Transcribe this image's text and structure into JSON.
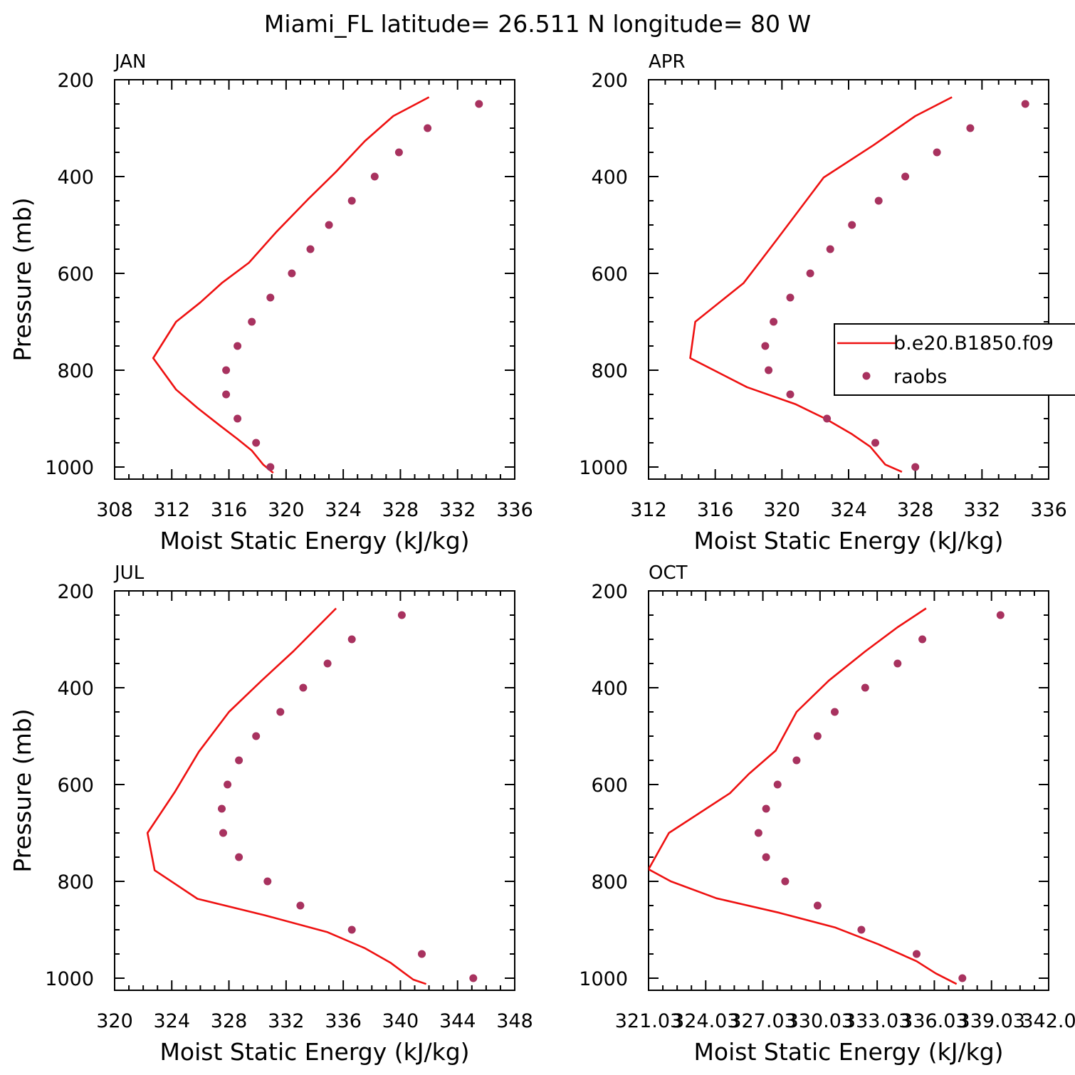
{
  "title": "Miami_FL  latitude= 26.511 N longitude= 80 W",
  "colors": {
    "model_line": "#ee1111",
    "obs_marker": "#a8325f",
    "axis": "#000000"
  },
  "legend": {
    "placement": "right-middle of APR panel",
    "entries": [
      {
        "label": "b.e20.B1850.f09",
        "style": "line"
      },
      {
        "label": "raobs",
        "style": "marker"
      }
    ]
  },
  "chart_data": [
    {
      "type": "line",
      "panel_label": "JAN",
      "xlabel": "Moist Static Energy (kJ/kg)",
      "ylabel": "Pressure (mb)",
      "xlim": [
        308,
        336
      ],
      "ylim": [
        1025,
        200
      ],
      "xticks": [
        "308",
        "312",
        "316",
        "320",
        "324",
        "328",
        "332",
        "336"
      ],
      "yticks": [
        "200",
        "400",
        "600",
        "800",
        "1000"
      ],
      "series": [
        {
          "name": "b.e20.B1850.f09",
          "style": "line",
          "x": [
            330,
            327.5,
            325.5,
            323.5,
            321.5,
            319.3,
            317.4,
            315.5,
            314,
            312.3,
            310.7,
            312.3,
            313.8,
            315.4,
            316.6,
            317.6,
            318.4,
            319.1
          ],
          "y": [
            236,
            275,
            327,
            390,
            448,
            515,
            578,
            620,
            660,
            700,
            775,
            840,
            878,
            915,
            942,
            966,
            995,
            1012
          ]
        },
        {
          "name": "raobs",
          "style": "marker",
          "x": [
            333.5,
            329.9,
            327.9,
            326.2,
            324.6,
            323,
            321.7,
            320.4,
            318.9,
            317.6,
            316.6,
            315.8,
            315.8,
            316.6,
            317.9,
            318.9
          ],
          "y": [
            250,
            300,
            350,
            400,
            450,
            500,
            550,
            600,
            650,
            700,
            750,
            800,
            850,
            900,
            950,
            1000
          ]
        }
      ]
    },
    {
      "type": "line",
      "panel_label": "APR",
      "xlabel": "Moist Static Energy (kJ/kg)",
      "ylabel": "",
      "xlim": [
        312,
        336
      ],
      "ylim": [
        1025,
        200
      ],
      "xticks": [
        "312",
        "316",
        "320",
        "324",
        "328",
        "332",
        "336"
      ],
      "yticks": [
        "200",
        "400",
        "600",
        "800",
        "1000"
      ],
      "series": [
        {
          "name": "b.e20.B1850.f09",
          "style": "line",
          "x": [
            330.2,
            328,
            325.5,
            322.5,
            319.7,
            317.7,
            314.8,
            314.5,
            317.9,
            320.8,
            322.6,
            324.2,
            325.3,
            326.2,
            327.2
          ],
          "y": [
            236,
            275,
            335,
            402,
            530,
            620,
            700,
            775,
            835,
            870,
            900,
            932,
            958,
            995,
            1010
          ]
        },
        {
          "name": "raobs",
          "style": "marker",
          "x": [
            334.6,
            331.3,
            329.3,
            327.4,
            325.8,
            324.2,
            322.9,
            321.7,
            320.5,
            319.5,
            319,
            319.2,
            320.5,
            322.7,
            325.6,
            328
          ],
          "y": [
            250,
            300,
            350,
            400,
            450,
            500,
            550,
            600,
            650,
            700,
            750,
            800,
            850,
            900,
            950,
            1000
          ]
        }
      ]
    },
    {
      "type": "line",
      "panel_label": "JUL",
      "xlabel": "Moist Static Energy (kJ/kg)",
      "ylabel": "Pressure (mb)",
      "xlim": [
        320,
        348
      ],
      "ylim": [
        1025,
        200
      ],
      "xticks": [
        "320",
        "324",
        "328",
        "332",
        "336",
        "340",
        "344",
        "348"
      ],
      "yticks": [
        "200",
        "400",
        "600",
        "800",
        "1000"
      ],
      "series": [
        {
          "name": "b.e20.B1850.f09",
          "style": "line",
          "x": [
            335.5,
            332.5,
            330.3,
            328,
            325.9,
            324.2,
            322.3,
            322.8,
            325.8,
            330.5,
            334.9,
            337.5,
            339.3,
            340.3,
            340.9,
            341.8
          ],
          "y": [
            236,
            325,
            385,
            450,
            532,
            616,
            700,
            777,
            836,
            870,
            905,
            938,
            968,
            990,
            1003,
            1012
          ]
        },
        {
          "name": "raobs",
          "style": "marker",
          "x": [
            340.1,
            336.6,
            334.9,
            333.2,
            331.6,
            329.9,
            328.7,
            327.9,
            327.5,
            327.6,
            328.7,
            330.7,
            333,
            336.6,
            341.5,
            345.1
          ],
          "y": [
            250,
            300,
            350,
            400,
            450,
            500,
            550,
            600,
            650,
            700,
            750,
            800,
            850,
            900,
            950,
            1000
          ]
        }
      ]
    },
    {
      "type": "line",
      "panel_label": "OCT",
      "xlabel": "Moist Static Energy (kJ/kg)",
      "ylabel": "",
      "xlim": [
        321.03,
        342.03
      ],
      "ylim": [
        1025,
        200
      ],
      "xticks": [
        "321.03",
        "324.03",
        "327.03",
        "330.03",
        "333.03",
        "336.03",
        "339.03",
        "342.0"
      ],
      "yticks": [
        "200",
        "400",
        "600",
        "800",
        "1000"
      ],
      "series": [
        {
          "name": "b.e20.B1850.f09",
          "style": "line",
          "x": [
            335.6,
            334.1,
            332.4,
            330.5,
            328.8,
            327.7,
            326.3,
            325.3,
            322.1,
            321.03,
            322.2,
            324.6,
            327.9,
            330.8,
            333.1,
            335.1,
            336.1,
            337.2
          ],
          "y": [
            236,
            275,
            325,
            385,
            450,
            530,
            578,
            618,
            700,
            775,
            800,
            835,
            865,
            895,
            930,
            965,
            990,
            1012
          ]
        },
        {
          "name": "raobs",
          "style": "marker",
          "x": [
            339.5,
            335.4,
            334.1,
            332.4,
            330.8,
            329.9,
            328.8,
            327.8,
            327.2,
            326.8,
            327.2,
            328.2,
            329.9,
            332.2,
            335.1,
            337.5
          ],
          "y": [
            250,
            300,
            350,
            400,
            450,
            500,
            550,
            600,
            650,
            700,
            750,
            800,
            850,
            900,
            950,
            1000
          ]
        }
      ]
    }
  ]
}
